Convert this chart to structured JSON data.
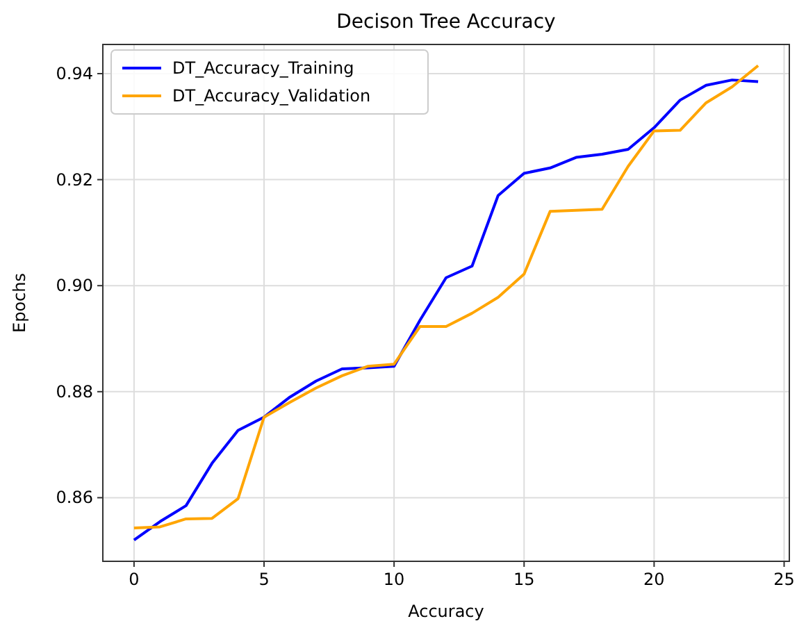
{
  "chart_data": {
    "type": "line",
    "title": "Decison Tree  Accuracy",
    "xlabel": "Accuracy",
    "ylabel": "Epochs",
    "x": [
      0,
      1,
      2,
      3,
      4,
      5,
      6,
      7,
      8,
      9,
      10,
      11,
      12,
      13,
      14,
      15,
      16,
      17,
      18,
      19,
      20,
      21,
      22,
      23,
      24
    ],
    "series": [
      {
        "name": "DT_Accuracy_Training",
        "color": "#0000ff",
        "values": [
          0.852,
          0.8555,
          0.8585,
          0.8665,
          0.8727,
          0.8752,
          0.879,
          0.882,
          0.8843,
          0.8845,
          0.8848,
          0.8935,
          0.9015,
          0.9037,
          0.917,
          0.9212,
          0.9222,
          0.9242,
          0.9248,
          0.9257,
          0.9298,
          0.935,
          0.9378,
          0.9388,
          0.9385
        ]
      },
      {
        "name": "DT_Accuracy_Validation",
        "color": "#ffa500",
        "values": [
          0.8543,
          0.8545,
          0.856,
          0.8561,
          0.8598,
          0.8752,
          0.878,
          0.8807,
          0.883,
          0.8848,
          0.8852,
          0.8923,
          0.8923,
          0.8948,
          0.8978,
          0.9022,
          0.914,
          0.9142,
          0.9144,
          0.9225,
          0.9292,
          0.9293,
          0.9345,
          0.9375,
          0.9415
        ]
      }
    ],
    "xlim": [
      -1.2,
      25.2
    ],
    "ylim": [
      0.848,
      0.9455
    ],
    "xticks": [
      0,
      5,
      10,
      15,
      20,
      25
    ],
    "yticks": [
      {
        "value": 0.86,
        "label": "0.86"
      },
      {
        "value": 0.88,
        "label": "0.88"
      },
      {
        "value": 0.9,
        "label": "0.90"
      },
      {
        "value": 0.92,
        "label": "0.92"
      },
      {
        "value": 0.94,
        "label": "0.94"
      }
    ],
    "grid": true,
    "legend": "top left",
    "marker": "none",
    "line_style": "solid"
  }
}
